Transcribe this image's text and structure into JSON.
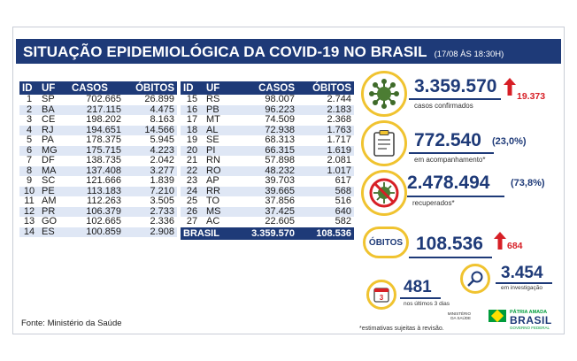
{
  "title": {
    "main": "SITUAÇÃO EPIDEMIOLÓGICA DA COVID-19 NO BRASIL",
    "date": "(17/08 ÀS 18:30H)"
  },
  "table": {
    "headers": {
      "id": "ID",
      "uf": "UF",
      "cases": "CASOS",
      "deaths": "ÓBITOS"
    },
    "left_rows": [
      {
        "id": "1",
        "uf": "SP",
        "cases": "702.665",
        "deaths": "26.899"
      },
      {
        "id": "2",
        "uf": "BA",
        "cases": "217.115",
        "deaths": "4.475"
      },
      {
        "id": "3",
        "uf": "CE",
        "cases": "198.202",
        "deaths": "8.163"
      },
      {
        "id": "4",
        "uf": "RJ",
        "cases": "194.651",
        "deaths": "14.566"
      },
      {
        "id": "5",
        "uf": "PA",
        "cases": "178.375",
        "deaths": "5.945"
      },
      {
        "id": "6",
        "uf": "MG",
        "cases": "175.715",
        "deaths": "4.223"
      },
      {
        "id": "7",
        "uf": "DF",
        "cases": "138.735",
        "deaths": "2.042"
      },
      {
        "id": "8",
        "uf": "MA",
        "cases": "137.408",
        "deaths": "3.277"
      },
      {
        "id": "9",
        "uf": "SC",
        "cases": "121.666",
        "deaths": "1.839"
      },
      {
        "id": "10",
        "uf": "PE",
        "cases": "113.183",
        "deaths": "7.210"
      },
      {
        "id": "11",
        "uf": "AM",
        "cases": "112.263",
        "deaths": "3.505"
      },
      {
        "id": "12",
        "uf": "PR",
        "cases": "106.379",
        "deaths": "2.733"
      },
      {
        "id": "13",
        "uf": "GO",
        "cases": "102.665",
        "deaths": "2.336"
      },
      {
        "id": "14",
        "uf": "ES",
        "cases": "100.859",
        "deaths": "2.908"
      }
    ],
    "right_rows": [
      {
        "id": "15",
        "uf": "RS",
        "cases": "98.007",
        "deaths": "2.744"
      },
      {
        "id": "16",
        "uf": "PB",
        "cases": "96.223",
        "deaths": "2.183"
      },
      {
        "id": "17",
        "uf": "MT",
        "cases": "74.509",
        "deaths": "2.368"
      },
      {
        "id": "18",
        "uf": "AL",
        "cases": "72.938",
        "deaths": "1.763"
      },
      {
        "id": "19",
        "uf": "SE",
        "cases": "68.313",
        "deaths": "1.717"
      },
      {
        "id": "20",
        "uf": "PI",
        "cases": "66.315",
        "deaths": "1.619"
      },
      {
        "id": "21",
        "uf": "RN",
        "cases": "57.898",
        "deaths": "2.081"
      },
      {
        "id": "22",
        "uf": "RO",
        "cases": "48.232",
        "deaths": "1.017"
      },
      {
        "id": "23",
        "uf": "AP",
        "cases": "39.703",
        "deaths": "617"
      },
      {
        "id": "24",
        "uf": "RR",
        "cases": "39.665",
        "deaths": "568"
      },
      {
        "id": "25",
        "uf": "TO",
        "cases": "37.856",
        "deaths": "516"
      },
      {
        "id": "26",
        "uf": "MS",
        "cases": "37.425",
        "deaths": "640"
      },
      {
        "id": "27",
        "uf": "AC",
        "cases": "22.605",
        "deaths": "582"
      }
    ],
    "total": {
      "label": "BRASIL",
      "cases": "3.359.570",
      "deaths": "108.536"
    }
  },
  "stats": {
    "confirmed": {
      "value": "3.359.570",
      "label": "casos confirmados",
      "delta": "19.373",
      "icon": "virus-icon"
    },
    "monitoring": {
      "value": "772.540",
      "pct": "(23,0%)",
      "label": "em acompanhamento*",
      "icon": "clipboard-icon"
    },
    "recovered": {
      "value": "2.478.494",
      "pct": "(73,8%)",
      "label": "recuperados*",
      "icon": "crossed-virus-icon"
    },
    "deaths": {
      "badge": "ÓBITOS",
      "value": "108.536",
      "delta": "684"
    },
    "recent_deaths": {
      "value": "481",
      "label": "nos últimos 3 dias",
      "icon": "calendar-icon"
    },
    "investigating": {
      "value": "3.454",
      "label": "em investigação",
      "icon": "magnifier-icon"
    }
  },
  "footer": {
    "source": "Fonte: Ministério da Saúde",
    "footnote": "*estimativas sujeitas à revisão.",
    "ministry": "MINISTÉRIO DA SAÚDE",
    "logo_top": "PÁTRIA AMADA",
    "logo_main": "BRASIL",
    "logo_sub": "GOVERNO FEDERAL"
  },
  "colors": {
    "navy": "#1e3a78",
    "yellow": "#f0c330",
    "red": "#d71f26",
    "row_alt": "#dfe7f5"
  }
}
